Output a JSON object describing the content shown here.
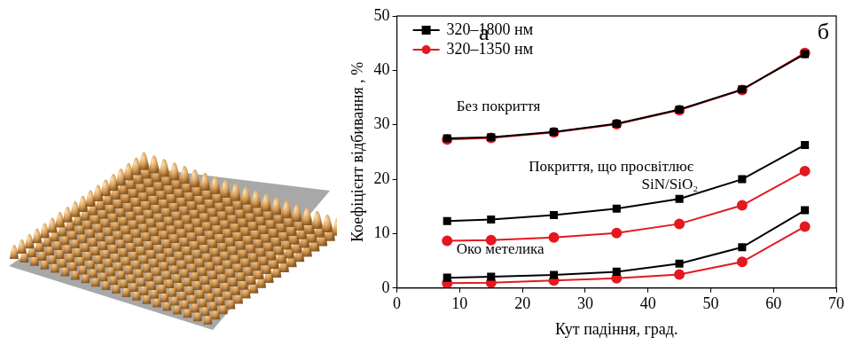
{
  "image_panel": {
    "label": "а"
  },
  "chart_data": {
    "type": "line",
    "panel_label": "б",
    "x_label": "Кут падіння, град.",
    "y_label": "Коефіцієнт відбивання , %",
    "x": [
      8,
      15,
      25,
      35,
      45,
      55,
      65
    ],
    "xlim": [
      0,
      70
    ],
    "xticks": [
      0,
      10,
      20,
      30,
      40,
      50,
      60,
      70
    ],
    "ylim": [
      0,
      50
    ],
    "yticks": [
      0,
      10,
      20,
      30,
      40,
      50
    ],
    "grid": false,
    "legend": "upper left",
    "annotations": [
      "Без покриття",
      "Покриття, що просвітлює",
      "SiN/SiO₂",
      "Око метелика"
    ],
    "series": [
      {
        "name": "320–1800 нм",
        "color": "#000000",
        "marker": "square",
        "values": [
          27.5,
          27.7,
          28.7,
          30.2,
          32.8,
          36.5,
          43.0
        ]
      },
      {
        "name": "320–1350 нм",
        "color": "#e3191f",
        "marker": "circle",
        "values": [
          27.3,
          27.6,
          28.6,
          30.1,
          32.7,
          36.4,
          43.2
        ]
      },
      {
        "name": "320–1800 нм",
        "color": "#000000",
        "marker": "square",
        "values": [
          12.3,
          12.6,
          13.4,
          14.6,
          16.4,
          20.0,
          26.3
        ]
      },
      {
        "name": "320–1350 нм",
        "color": "#e3191f",
        "marker": "circle",
        "values": [
          8.7,
          8.8,
          9.3,
          10.1,
          11.8,
          15.2,
          21.5
        ]
      },
      {
        "name": "320–1800 нм",
        "color": "#000000",
        "marker": "square",
        "values": [
          1.9,
          2.1,
          2.4,
          3.0,
          4.5,
          7.5,
          14.3
        ]
      },
      {
        "name": "320–1350 нм",
        "color": "#e3191f",
        "marker": "circle",
        "values": [
          0.9,
          1.0,
          1.4,
          1.8,
          2.5,
          4.8,
          11.3
        ]
      }
    ]
  }
}
